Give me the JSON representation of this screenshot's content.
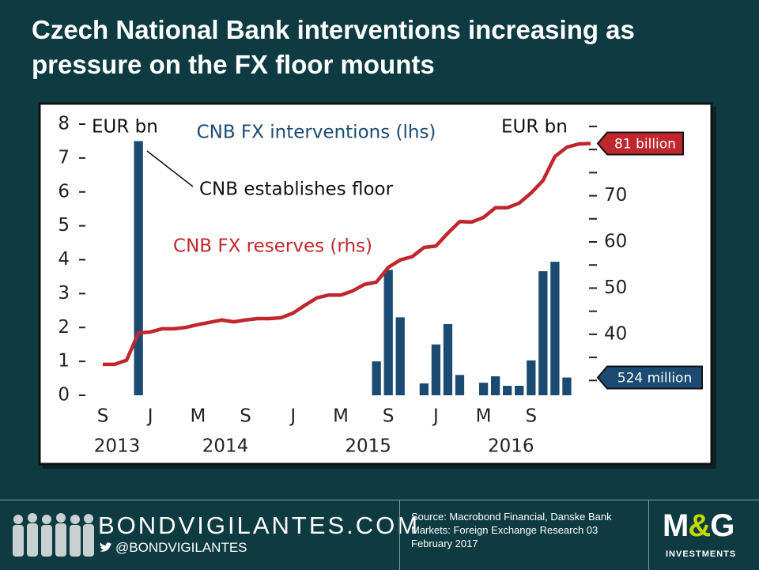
{
  "chart_data": {
    "type": "combo",
    "title": "Czech National Bank interventions increasing as pressure on the FX floor mounts",
    "categories": [
      "S",
      null,
      null,
      null,
      "J",
      null,
      null,
      null,
      "M",
      null,
      null,
      null,
      "S",
      null,
      null,
      null,
      "J",
      null,
      null,
      null,
      "M",
      null,
      null,
      null,
      "S",
      null,
      null,
      null,
      "J",
      null,
      null,
      null,
      "M",
      null,
      null,
      null,
      "S",
      null,
      null,
      null,
      null,
      null
    ],
    "x_group_labels": [
      "2013",
      "2014",
      "2015",
      "2016"
    ],
    "ylim": [
      0,
      8
    ],
    "yticks": [
      0,
      1,
      2,
      3,
      4,
      5,
      6,
      7,
      8
    ],
    "y2lim": [
      26.8,
      85.5
    ],
    "y2ticks": [
      40,
      50,
      60,
      70
    ],
    "y2minorticks": [
      30,
      35,
      45,
      55,
      65,
      75,
      80,
      85
    ],
    "ylabel": "EUR bn",
    "y2label": "EUR bn",
    "annotations": [
      "CNB establishes floor"
    ],
    "series": [
      {
        "name": "CNB FX interventions (lhs)",
        "type": "bar",
        "color": "#1b4a72",
        "values": [
          0,
          0,
          0,
          7.5,
          0,
          0,
          0,
          0,
          0,
          0,
          0,
          0,
          0,
          0,
          0,
          0,
          0,
          0,
          0,
          0,
          0,
          0,
          0,
          1.0,
          3.7,
          2.3,
          0,
          0.35,
          1.5,
          2.1,
          0.6,
          0,
          0.37,
          0.56,
          0.28,
          0.28,
          1.03,
          3.66,
          3.94,
          0.524,
          0,
          0
        ],
        "value_labels": [
          null,
          null,
          null,
          null,
          null,
          null,
          null,
          null,
          null,
          null,
          null,
          null,
          null,
          null,
          null,
          null,
          null,
          null,
          null,
          null,
          null,
          null,
          null,
          null,
          null,
          null,
          null,
          null,
          null,
          null,
          null,
          null,
          null,
          null,
          null,
          null,
          null,
          null,
          null,
          "524 million",
          null,
          null
        ]
      },
      {
        "name": "CNB FX reserves (rhs)",
        "type": "line",
        "axis": "y2",
        "color": "#c0272d",
        "values": [
          33.5,
          33.5,
          34.4,
          40.3,
          40.5,
          41.2,
          41.2,
          41.5,
          42.1,
          42.6,
          43.1,
          42.7,
          43.1,
          43.4,
          43.4,
          43.6,
          44.6,
          46.3,
          47.9,
          48.5,
          48.5,
          49.4,
          50.8,
          51.3,
          54.5,
          56.1,
          56.8,
          58.8,
          59.1,
          61.9,
          64.4,
          64.3,
          65.3,
          67.4,
          67.4,
          68.4,
          70.6,
          73.3,
          78.5,
          80.5,
          81.2,
          81.3
        ],
        "value_labels": [
          null,
          null,
          null,
          null,
          null,
          null,
          null,
          null,
          null,
          null,
          null,
          null,
          null,
          null,
          null,
          null,
          null,
          null,
          null,
          null,
          null,
          null,
          null,
          null,
          null,
          null,
          null,
          null,
          null,
          null,
          null,
          null,
          null,
          null,
          null,
          null,
          null,
          null,
          null,
          null,
          null,
          "81 billion"
        ]
      }
    ]
  },
  "footer": {
    "site": "BONDVIGILANTES.COM",
    "twitter": "@BONDVIGILANTES",
    "source": "Source: Macrobond Financial, Danske Bank Markets: Foreign Exchange Research 03 February 2017",
    "logo": "M&G",
    "logo_sub": "INVESTMENTS"
  }
}
